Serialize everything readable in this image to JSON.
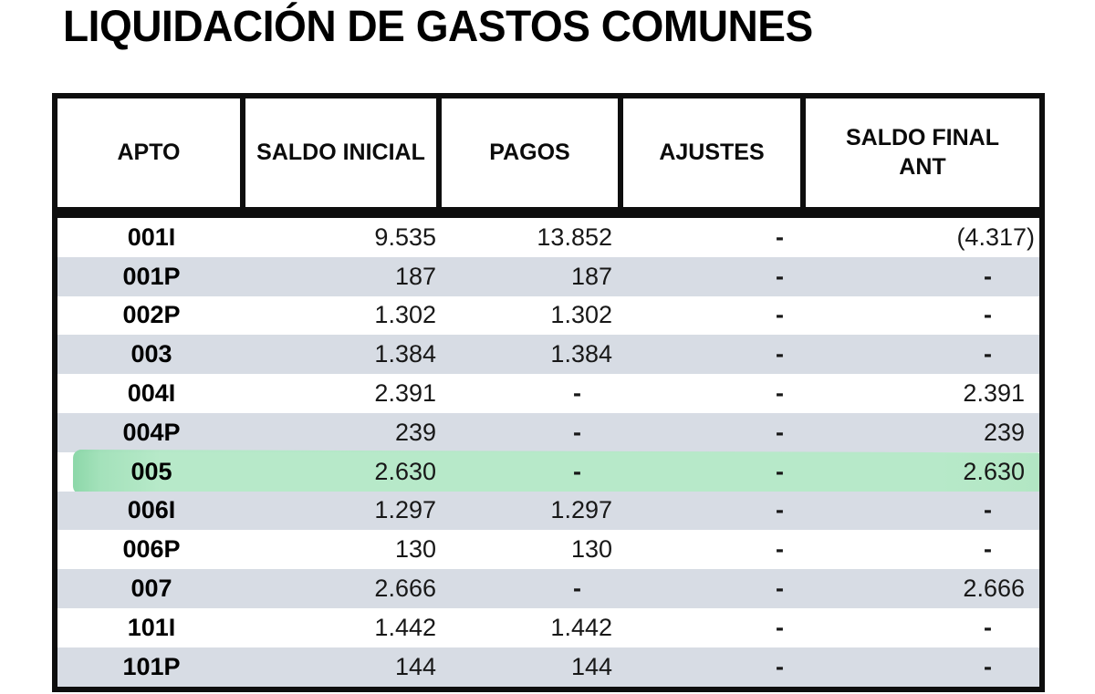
{
  "title": "LIQUIDACIÓN DE GASTOS COMUNES",
  "table": {
    "columns": [
      {
        "key": "apto",
        "label": "APTO"
      },
      {
        "key": "saldo_inicial",
        "label": "SALDO INICIAL"
      },
      {
        "key": "pagos",
        "label": "PAGOS"
      },
      {
        "key": "ajustes",
        "label": "AJUSTES"
      },
      {
        "key": "saldo_final_ant",
        "label": "SALDO FINAL ANT"
      }
    ],
    "rows": [
      {
        "apto": "001I",
        "saldo_inicial": "9.535",
        "pagos": "13.852",
        "ajustes": "-",
        "saldo_final_ant": "(4.317)"
      },
      {
        "apto": "001P",
        "saldo_inicial": "187",
        "pagos": "187",
        "ajustes": "-",
        "saldo_final_ant": "-"
      },
      {
        "apto": "002P",
        "saldo_inicial": "1.302",
        "pagos": "1.302",
        "ajustes": "-",
        "saldo_final_ant": "-"
      },
      {
        "apto": "003",
        "saldo_inicial": "1.384",
        "pagos": "1.384",
        "ajustes": "-",
        "saldo_final_ant": "-"
      },
      {
        "apto": "004I",
        "saldo_inicial": "2.391",
        "pagos": "-",
        "ajustes": "-",
        "saldo_final_ant": "2.391"
      },
      {
        "apto": "004P",
        "saldo_inicial": "239",
        "pagos": "-",
        "ajustes": "-",
        "saldo_final_ant": "239"
      },
      {
        "apto": "005",
        "saldo_inicial": "2.630",
        "pagos": "-",
        "ajustes": "-",
        "saldo_final_ant": "2.630"
      },
      {
        "apto": "006I",
        "saldo_inicial": "1.297",
        "pagos": "1.297",
        "ajustes": "-",
        "saldo_final_ant": "-"
      },
      {
        "apto": "006P",
        "saldo_inicial": "130",
        "pagos": "130",
        "ajustes": "-",
        "saldo_final_ant": "-"
      },
      {
        "apto": "007",
        "saldo_inicial": "2.666",
        "pagos": "-",
        "ajustes": "-",
        "saldo_final_ant": "2.666"
      },
      {
        "apto": "101I",
        "saldo_inicial": "1.442",
        "pagos": "1.442",
        "ajustes": "-",
        "saldo_final_ant": "-"
      },
      {
        "apto": "101P",
        "saldo_inicial": "144",
        "pagos": "144",
        "ajustes": "-",
        "saldo_final_ant": "-"
      }
    ],
    "highlighted_apto": "005",
    "colors": {
      "stripe": "#d7dce4",
      "highlight": "#b3e8c6",
      "highlight_edge": "#86d5a4",
      "border": "#0e0e0e"
    }
  }
}
